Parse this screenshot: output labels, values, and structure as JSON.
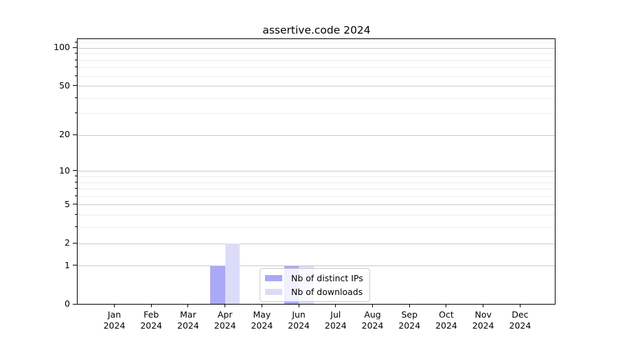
{
  "title": "assertive.code 2024",
  "chart_data": {
    "type": "bar",
    "categories": [
      "Jan 2024",
      "Feb 2024",
      "Mar 2024",
      "Apr 2024",
      "May 2024",
      "Jun 2024",
      "Jul 2024",
      "Aug 2024",
      "Sep 2024",
      "Oct 2024",
      "Nov 2024",
      "Dec 2024"
    ],
    "series": [
      {
        "name": "Nb of distinct IPs",
        "color": "#a9a9f6",
        "values": [
          0,
          0,
          0,
          1,
          0,
          1,
          0,
          0,
          0,
          0,
          0,
          0
        ]
      },
      {
        "name": "Nb of downloads",
        "color": "#dcdcf9",
        "values": [
          0,
          0,
          0,
          2,
          0,
          1,
          0,
          0,
          0,
          0,
          0,
          0
        ]
      }
    ],
    "title": "assertive.code 2024",
    "xlabel": "",
    "ylabel": "",
    "yscale": "log1p",
    "ylim": [
      0,
      118
    ],
    "yticks_major": [
      0,
      1,
      2,
      5,
      10,
      20,
      50,
      100
    ],
    "yticks_minor": [
      3,
      4,
      6,
      7,
      8,
      9,
      30,
      40,
      60,
      70,
      80,
      90,
      110
    ],
    "grid": "on",
    "legend_position": "lower center"
  },
  "colors": {
    "grid_major": "#c9c9c9",
    "grid_minor": "#ededed",
    "spine": "#000000",
    "background": "#ffffff"
  }
}
